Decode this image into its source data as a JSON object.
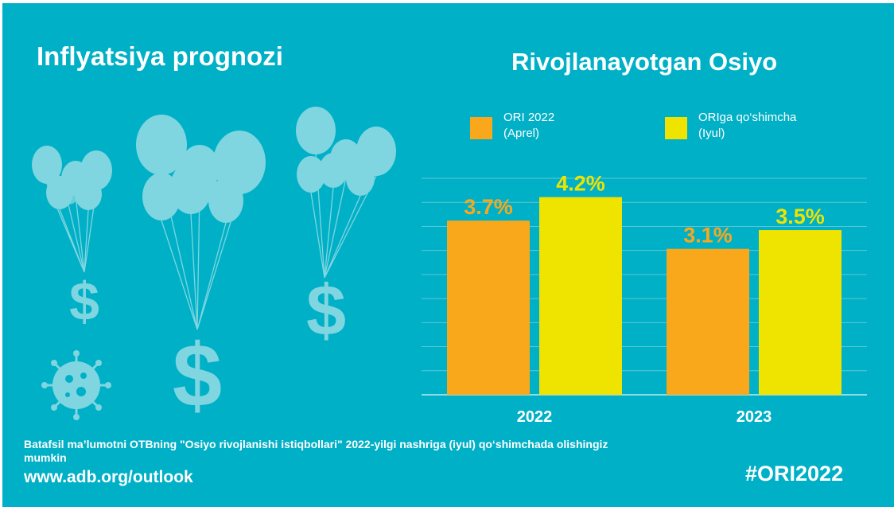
{
  "left_title": "Inflyatsiya prognozi",
  "chart_data": {
    "type": "bar",
    "title": "Rivojlanayotgan Osiyo",
    "categories": [
      "2022",
      "2023"
    ],
    "series": [
      {
        "name": "ORI 2022 (Aprel)",
        "legend_lines": [
          "ORI 2022",
          "(Aprel)"
        ],
        "values": [
          3.7,
          3.1
        ],
        "labels": [
          "3.7%",
          "3.1%"
        ],
        "color": "#f9a81b"
      },
      {
        "name": "ORIga qo‘shimcha (Iyul)",
        "legend_lines": [
          "ORIga qo‘shimcha",
          "(Iyul)"
        ],
        "values": [
          4.2,
          3.5
        ],
        "labels": [
          "4.2%",
          "3.5%"
        ],
        "color": "#efe300"
      }
    ],
    "ylim": [
      0,
      4.6
    ],
    "grid": true,
    "legend_position": "top"
  },
  "colors": {
    "background": "#00b0c7",
    "balloon": "#7fd6e0",
    "gridline": "#5cc7d5"
  },
  "icons": [
    "balloon-dollar-icon",
    "virus-icon"
  ],
  "footer": {
    "note": "Batafsil ma’lumotni OTBning \"Osiyo rivojlanishi istiqbollari\" 2022-yilgi nashriga (iyul) qo‘shimchada olishingiz mumkin",
    "url": "www.adb.org/outlook",
    "hashtag": "#ORI2022"
  }
}
